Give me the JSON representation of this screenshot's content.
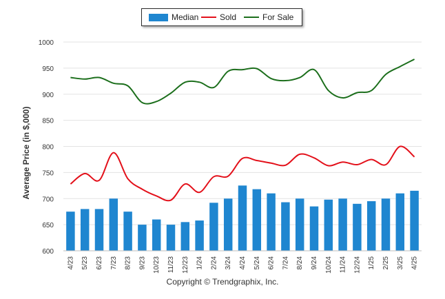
{
  "chart_data": {
    "type": "bar+line",
    "ylabel": "Average Price (in $,000)",
    "ylim": [
      600,
      1000
    ],
    "yticks": [
      600,
      650,
      700,
      750,
      800,
      850,
      900,
      950,
      1000
    ],
    "grid": true,
    "legend_position": "top-center",
    "categories": [
      "4/23",
      "5/23",
      "6/23",
      "7/23",
      "8/23",
      "9/23",
      "10/23",
      "11/23",
      "12/23",
      "1/24",
      "2/24",
      "3/24",
      "4/24",
      "5/24",
      "6/24",
      "7/24",
      "8/24",
      "9/24",
      "10/24",
      "11/24",
      "12/24",
      "1/25",
      "2/25",
      "3/25",
      "4/25"
    ],
    "series": [
      {
        "name": "Median",
        "type": "bar",
        "color": "#1f86d0",
        "values": [
          675,
          680,
          680,
          700,
          675,
          650,
          660,
          650,
          655,
          658,
          692,
          700,
          725,
          718,
          710,
          693,
          700,
          685,
          698,
          700,
          690,
          695,
          700,
          710,
          715
        ]
      },
      {
        "name": "Sold",
        "type": "line",
        "color": "#e3101a",
        "values": [
          728,
          748,
          735,
          788,
          738,
          718,
          705,
          697,
          728,
          712,
          742,
          743,
          777,
          773,
          768,
          764,
          785,
          778,
          763,
          770,
          765,
          775,
          765,
          800,
          780
        ]
      },
      {
        "name": "For Sale",
        "type": "line",
        "color": "#1b6e1b",
        "values": [
          932,
          929,
          932,
          921,
          916,
          884,
          886,
          902,
          923,
          923,
          913,
          944,
          947,
          949,
          930,
          926,
          932,
          947,
          907,
          893,
          903,
          907,
          938,
          953,
          967
        ]
      }
    ]
  },
  "footer": "Copyright © Trendgraphix, Inc."
}
